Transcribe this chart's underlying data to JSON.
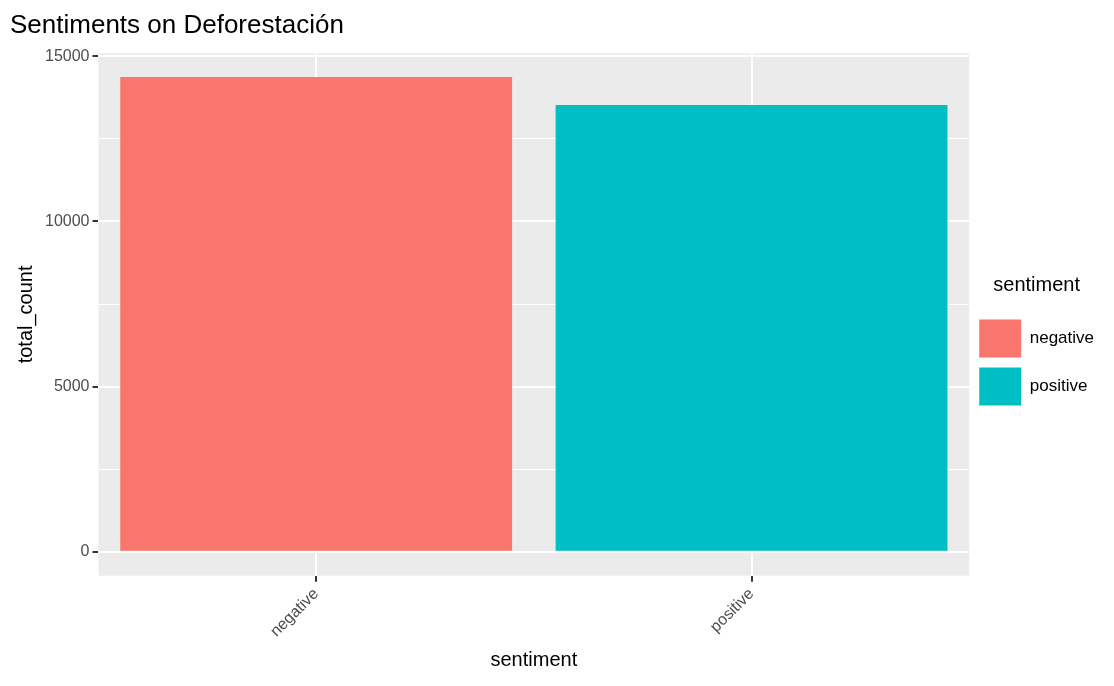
{
  "chart_data": {
    "type": "bar",
    "title": "Sentiments on Deforestación",
    "xlabel": "sentiment",
    "ylabel": "total_count",
    "legend_title": "sentiment",
    "categories": [
      "negative",
      "positive"
    ],
    "series": [
      {
        "name": "negative",
        "color": "#f8766d",
        "values": [
          14370,
          null
        ]
      },
      {
        "name": "positive",
        "color": "#00bfc4",
        "values": [
          null,
          13520
        ]
      }
    ],
    "ylim": [
      -720,
      15090
    ],
    "yticks": [
      0,
      {
        "value": 2500,
        "label": null
      },
      5000,
      {
        "value": 7500,
        "label": null
      },
      10000,
      {
        "value": 12500,
        "label": null
      },
      15000
    ],
    "grid": true,
    "legend": "right"
  }
}
